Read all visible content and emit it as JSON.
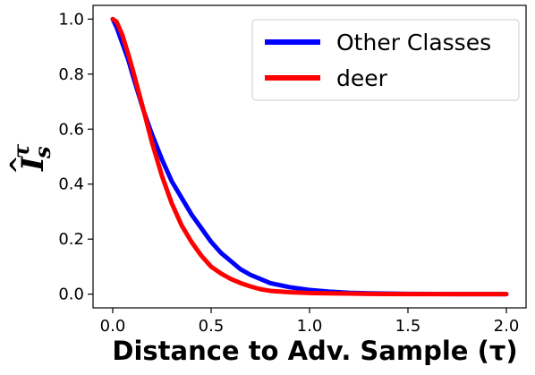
{
  "chart_data": {
    "type": "line",
    "title": "",
    "xlabel": "Distance to Adv. Sample (τ)",
    "ylabel": {
      "base": "I",
      "hat": "^",
      "superscript": "τ",
      "subscript": "s"
    },
    "xlim": [
      -0.1,
      2.1
    ],
    "ylim": [
      -0.05,
      1.05
    ],
    "x_ticks": [
      0.0,
      0.5,
      1.0,
      1.5,
      2.0
    ],
    "x_tick_labels": [
      "0.0",
      "0.5",
      "1.0",
      "1.5",
      "2.0"
    ],
    "y_ticks": [
      0.0,
      0.2,
      0.4,
      0.6,
      0.8,
      1.0
    ],
    "y_tick_labels": [
      "0.0",
      "0.2",
      "0.4",
      "0.6",
      "0.8",
      "1.0"
    ],
    "grid": false,
    "legend_position": "top-right",
    "series": [
      {
        "name": "Other Classes",
        "color": "#0000ff",
        "x": [
          0.0,
          0.02,
          0.05,
          0.08,
          0.1,
          0.13,
          0.16,
          0.2,
          0.25,
          0.3,
          0.35,
          0.4,
          0.45,
          0.5,
          0.55,
          0.6,
          0.65,
          0.7,
          0.75,
          0.8,
          0.9,
          1.0,
          1.1,
          1.2,
          1.3,
          1.5,
          1.75,
          2.0
        ],
        "y": [
          1.0,
          0.97,
          0.91,
          0.85,
          0.8,
          0.73,
          0.66,
          0.58,
          0.49,
          0.41,
          0.35,
          0.29,
          0.24,
          0.19,
          0.15,
          0.12,
          0.09,
          0.07,
          0.055,
          0.04,
          0.025,
          0.015,
          0.009,
          0.005,
          0.003,
          0.001,
          0.0,
          0.0
        ]
      },
      {
        "name": "deer",
        "color": "#ff0000",
        "x": [
          0.0,
          0.02,
          0.05,
          0.08,
          0.1,
          0.13,
          0.16,
          0.2,
          0.25,
          0.3,
          0.35,
          0.4,
          0.45,
          0.5,
          0.55,
          0.6,
          0.65,
          0.7,
          0.75,
          0.8,
          0.9,
          1.0,
          1.1,
          1.2,
          1.3,
          1.5,
          1.75,
          2.0
        ],
        "y": [
          1.0,
          0.99,
          0.94,
          0.87,
          0.82,
          0.74,
          0.66,
          0.55,
          0.43,
          0.33,
          0.25,
          0.19,
          0.14,
          0.1,
          0.075,
          0.055,
          0.04,
          0.028,
          0.018,
          0.012,
          0.007,
          0.004,
          0.003,
          0.002,
          0.001,
          0.0,
          0.0,
          0.0
        ]
      }
    ]
  }
}
